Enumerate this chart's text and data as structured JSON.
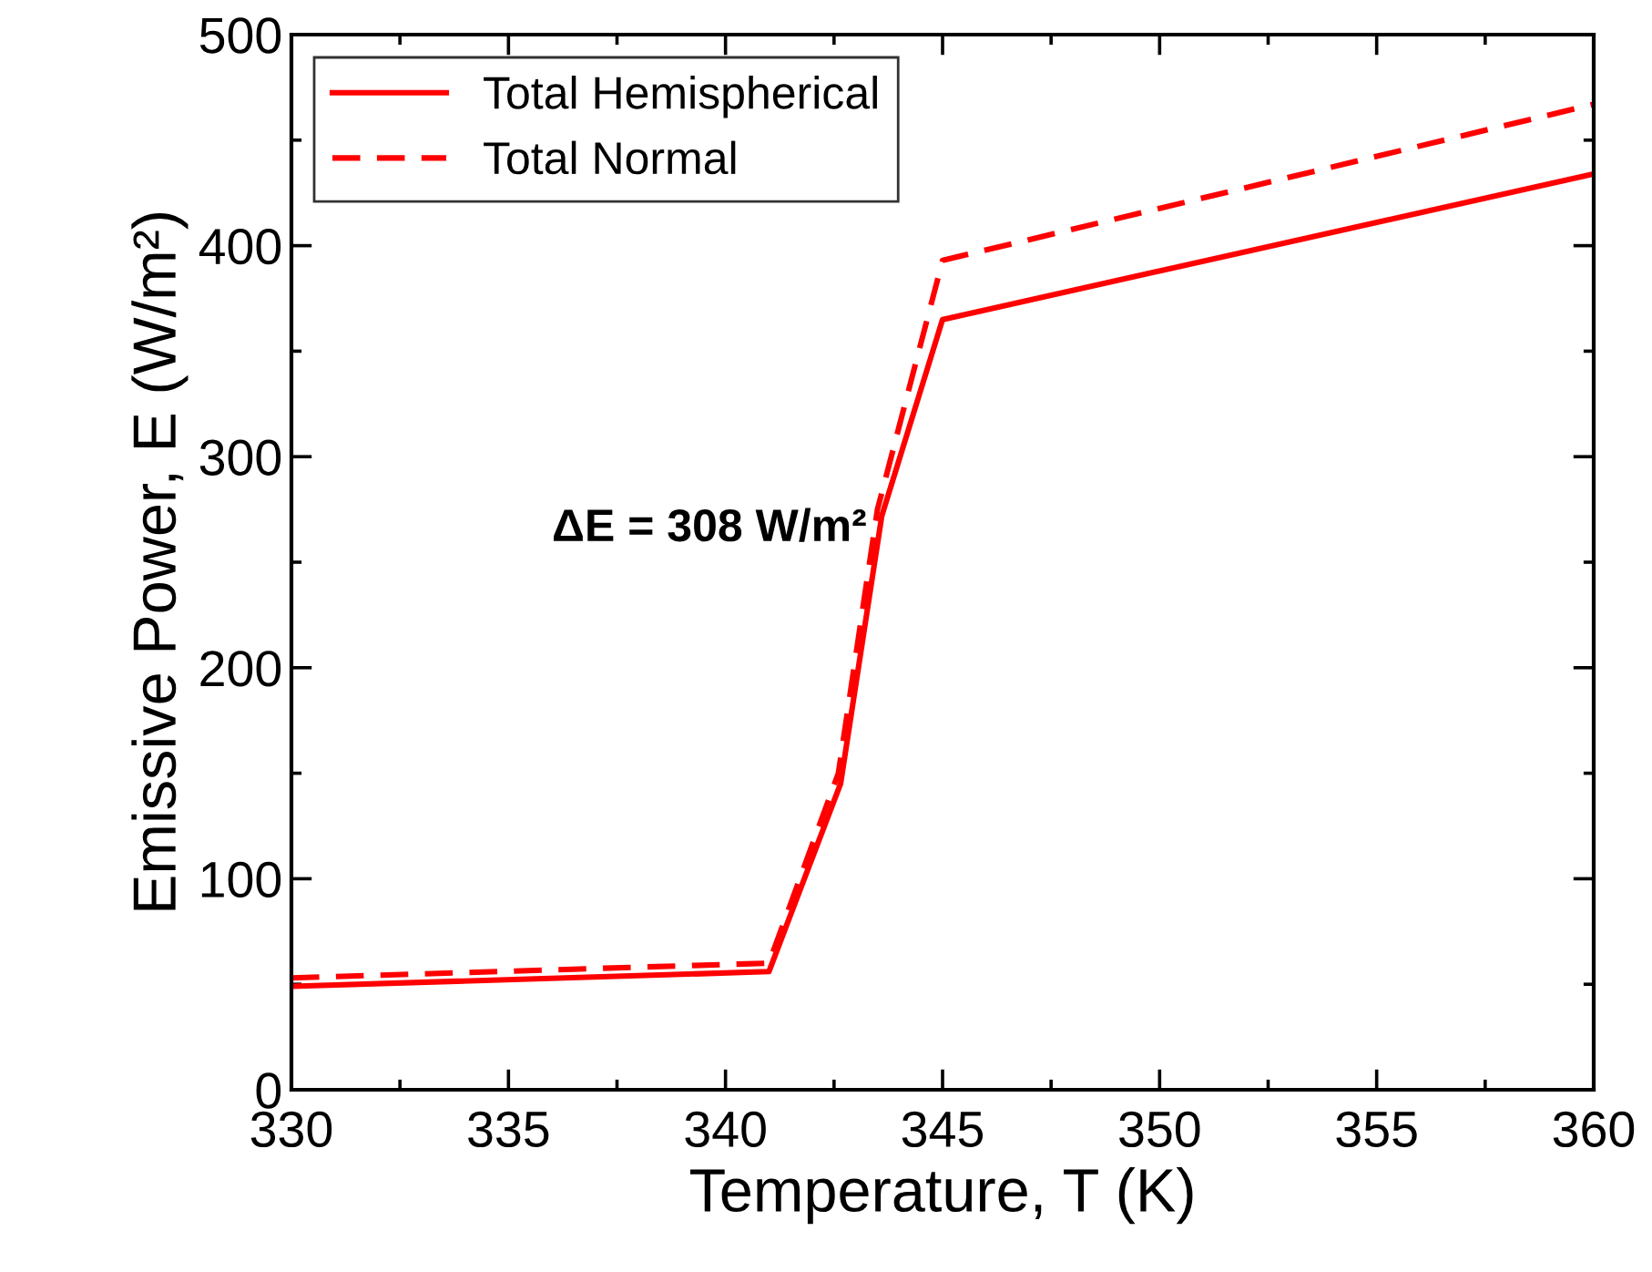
{
  "chart_data": {
    "type": "line",
    "xlabel": "Temperature, T (K)",
    "ylabel": "Emissive Power, E (W/m²)",
    "annotations": [
      "ΔE = 308 W/m²"
    ],
    "xlim": [
      330,
      360
    ],
    "ylim": [
      0,
      500
    ],
    "xticks": [
      330,
      335,
      340,
      345,
      350,
      355,
      360
    ],
    "yticks": [
      0,
      100,
      200,
      300,
      400,
      500
    ],
    "grid": false,
    "legend": "top left",
    "marker": "none",
    "series": [
      {
        "name": "Total Hemispherical",
        "color": "#ff0000",
        "line_style": "solid",
        "x": [
          330,
          341,
          342.65,
          343.6,
          345,
          360
        ],
        "values": [
          49,
          56,
          145,
          272,
          365,
          434
        ]
      },
      {
        "name": "Total Normal",
        "color": "#ff0000",
        "line_style": "dashed",
        "x": [
          330,
          341,
          342.6,
          343.5,
          345,
          360
        ],
        "values": [
          53,
          60,
          150,
          275,
          393,
          467
        ]
      }
    ]
  }
}
